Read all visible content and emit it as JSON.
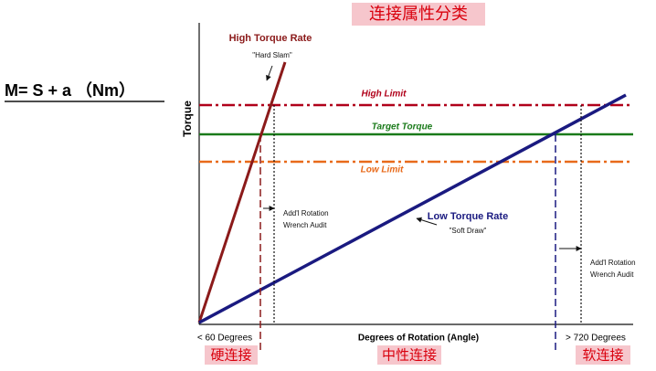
{
  "header": {
    "title": "连接属性分类"
  },
  "formula": "M= S + a （Nm）",
  "axes": {
    "y_label": "Torque",
    "x_label": "Degrees of Rotation (Angle)",
    "x_left": "< 60 Degrees",
    "x_right": "> 720 Degrees"
  },
  "limits": {
    "high": "High Limit",
    "target": "Target Torque",
    "low": "Low Limit"
  },
  "curves": {
    "high": {
      "name": "High Torque Rate",
      "note": "\"Hard Slam\""
    },
    "low": {
      "name": "Low Torque Rate",
      "note": "\"Soft Draw\""
    }
  },
  "annotations": [
    {
      "line1": "Add'l Rotation",
      "line2": "Wrench Audit"
    },
    {
      "line1": "Add'l Rotation",
      "line2": "Wrench Audit"
    }
  ],
  "categories": [
    "硬连接",
    "中性连接",
    "软连接"
  ]
}
